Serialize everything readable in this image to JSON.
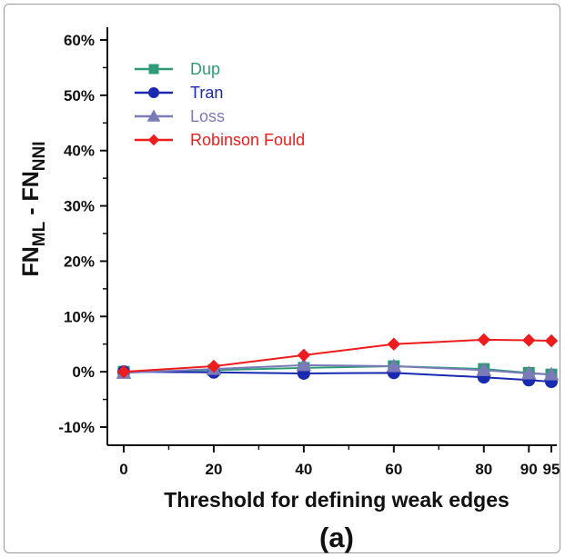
{
  "chart_data": {
    "type": "line",
    "title": "",
    "xlabel": "Threshold for defining weak edges",
    "ylabel_main": "FN",
    "ylabel_sub1": "ML",
    "ylabel_mid": " - FN",
    "ylabel_sub2": "NNI",
    "panel_label": "(a)",
    "x": [
      0,
      20,
      40,
      60,
      80,
      90,
      95
    ],
    "x_tick_labels": [
      "0",
      "20",
      "40",
      "60",
      "80",
      "90",
      "95"
    ],
    "y_ticks": [
      -10,
      0,
      10,
      20,
      30,
      40,
      50,
      60
    ],
    "y_tick_labels": [
      "-10%",
      "0%",
      "10%",
      "20%",
      "30%",
      "40%",
      "50%",
      "60%"
    ],
    "ylim": [
      -10,
      60
    ],
    "xlim": [
      0,
      95
    ],
    "legend_position": "top-left",
    "grid": false,
    "series": [
      {
        "name": "Dup",
        "marker": "square",
        "color": "#2e9a78",
        "values": [
          0.0,
          0.3,
          0.7,
          1.0,
          0.5,
          -0.2,
          -0.5
        ]
      },
      {
        "name": "Tran",
        "marker": "circle",
        "color": "#1a2ab0",
        "values": [
          0.0,
          -0.1,
          -0.3,
          -0.2,
          -1.0,
          -1.5,
          -1.8
        ]
      },
      {
        "name": "Loss",
        "marker": "triangle",
        "color": "#7a7ab8",
        "values": [
          -0.2,
          0.5,
          1.2,
          1.0,
          0.3,
          -0.3,
          -0.5
        ]
      },
      {
        "name": "Robinson Fould",
        "marker": "diamond",
        "color": "#ee1c1c",
        "values": [
          0.0,
          1.0,
          3.0,
          5.0,
          5.8,
          5.7,
          5.6
        ]
      }
    ]
  }
}
